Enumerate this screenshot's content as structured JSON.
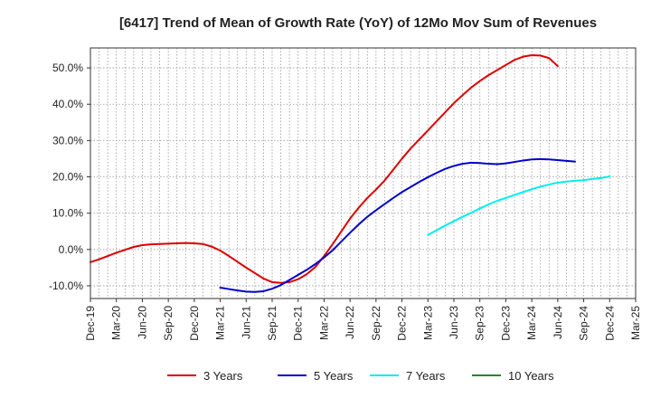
{
  "chart_data": {
    "type": "line",
    "title": "[6417]  Trend of Mean of Growth Rate (YoY) of 12Mo Mov Sum of Revenues",
    "xlabel": "",
    "ylabel": "",
    "ylim": [
      -13.5,
      55.5
    ],
    "y_ticks": [
      -10,
      0,
      10,
      20,
      30,
      40,
      50
    ],
    "y_tick_labels": [
      "-10.0%",
      "0.0%",
      "10.0%",
      "20.0%",
      "30.0%",
      "40.0%",
      "50.0%"
    ],
    "x_tick_labels": [
      "Dec-19",
      "Mar-20",
      "Jun-20",
      "Sep-20",
      "Dec-20",
      "Mar-21",
      "Jun-21",
      "Sep-21",
      "Dec-21",
      "Mar-22",
      "Jun-22",
      "Sep-22",
      "Dec-22",
      "Mar-23",
      "Jun-23",
      "Sep-23",
      "Dec-23",
      "Mar-24",
      "Jun-24",
      "Sep-24",
      "Dec-24",
      "Mar-25"
    ],
    "grid": true,
    "legend_position": "bottom",
    "series": [
      {
        "name": "3 Years",
        "color": "#dd0000",
        "start_index": 0,
        "values": [
          -3.5,
          -2.7,
          -1.8,
          -0.9,
          -0.1,
          0.7,
          1.2,
          1.4,
          1.5,
          1.6,
          1.7,
          1.8,
          1.7,
          1.5,
          0.8,
          -0.3,
          -1.8,
          -3.4,
          -5.0,
          -6.5,
          -8.0,
          -9.0,
          -9.2,
          -9.0,
          -8.2,
          -6.8,
          -4.8,
          -1.8,
          1.5,
          5.0,
          8.5,
          11.5,
          14.2,
          16.5,
          19.0,
          22.0,
          25.0,
          27.8,
          30.3,
          32.8,
          35.3,
          37.8,
          40.3,
          42.5,
          44.6,
          46.4,
          48.0,
          49.4,
          50.8,
          52.2,
          53.1,
          53.5,
          53.4,
          52.7,
          50.5
        ]
      },
      {
        "name": "5 Years",
        "color": "#0000cc",
        "start_index": 15,
        "values": [
          -10.5,
          -10.9,
          -11.3,
          -11.6,
          -11.7,
          -11.5,
          -10.8,
          -9.8,
          -8.4,
          -7.0,
          -5.6,
          -4.0,
          -2.2,
          -0.2,
          2.2,
          4.6,
          6.9,
          9.0,
          10.8,
          12.5,
          14.2,
          15.8,
          17.2,
          18.6,
          19.9,
          21.1,
          22.2,
          23.0,
          23.6,
          23.9,
          23.8,
          23.6,
          23.5,
          23.7,
          24.1,
          24.5,
          24.8,
          24.9,
          24.8,
          24.6,
          24.4,
          24.2
        ]
      },
      {
        "name": "7 Years",
        "color": "#00eeee",
        "start_index": 39,
        "values": [
          4.0,
          5.3,
          6.6,
          7.8,
          9.0,
          10.1,
          11.3,
          12.4,
          13.4,
          14.2,
          15.0,
          15.8,
          16.6,
          17.3,
          17.9,
          18.4,
          18.7,
          18.9,
          19.1,
          19.4,
          19.7,
          20.1
        ]
      },
      {
        "name": "10 Years",
        "color": "#228822",
        "start_index": 0,
        "values": []
      }
    ]
  }
}
